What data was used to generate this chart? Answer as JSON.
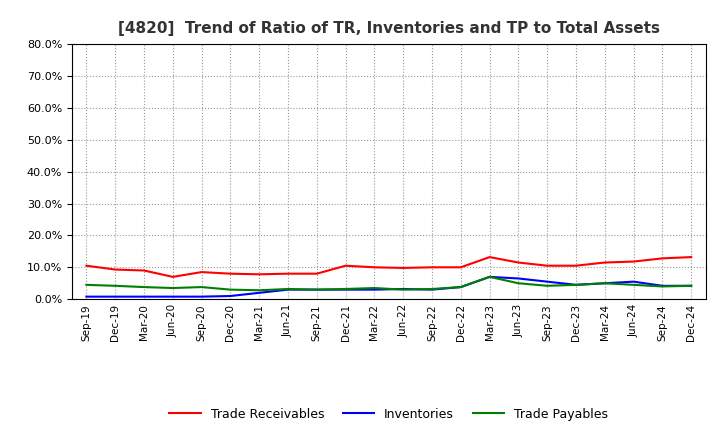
{
  "title": "[4820]  Trend of Ratio of TR, Inventories and TP to Total Assets",
  "labels": [
    "Sep-19",
    "Dec-19",
    "Mar-20",
    "Jun-20",
    "Sep-20",
    "Dec-20",
    "Mar-21",
    "Jun-21",
    "Sep-21",
    "Dec-21",
    "Mar-22",
    "Jun-22",
    "Sep-22",
    "Dec-22",
    "Mar-23",
    "Jun-23",
    "Sep-23",
    "Dec-23",
    "Mar-24",
    "Jun-24",
    "Sep-24",
    "Dec-24"
  ],
  "trade_receivables": [
    10.5,
    9.3,
    9.0,
    7.0,
    8.5,
    8.0,
    7.8,
    8.0,
    8.0,
    10.5,
    10.0,
    9.8,
    10.0,
    10.0,
    13.2,
    11.5,
    10.5,
    10.5,
    11.5,
    11.8,
    12.8,
    13.2
  ],
  "inventories": [
    0.8,
    0.8,
    0.8,
    0.8,
    0.8,
    1.0,
    2.0,
    3.0,
    3.0,
    3.0,
    3.0,
    3.2,
    3.0,
    3.8,
    7.0,
    6.5,
    5.5,
    4.5,
    5.0,
    5.5,
    4.2,
    4.2
  ],
  "trade_payables": [
    4.5,
    4.2,
    3.8,
    3.5,
    3.8,
    3.0,
    2.8,
    3.2,
    3.0,
    3.2,
    3.5,
    3.0,
    3.2,
    3.8,
    7.0,
    5.0,
    4.2,
    4.5,
    5.0,
    4.5,
    4.0,
    4.2
  ],
  "ylim": [
    0,
    80
  ],
  "yticks": [
    0,
    10,
    20,
    30,
    40,
    50,
    60,
    70,
    80
  ],
  "line_colors": {
    "trade_receivables": "#FF0000",
    "inventories": "#0000FF",
    "trade_payables": "#008000"
  },
  "background_color": "#FFFFFF",
  "grid_color": "#999999",
  "legend_labels": [
    "Trade Receivables",
    "Inventories",
    "Trade Payables"
  ]
}
